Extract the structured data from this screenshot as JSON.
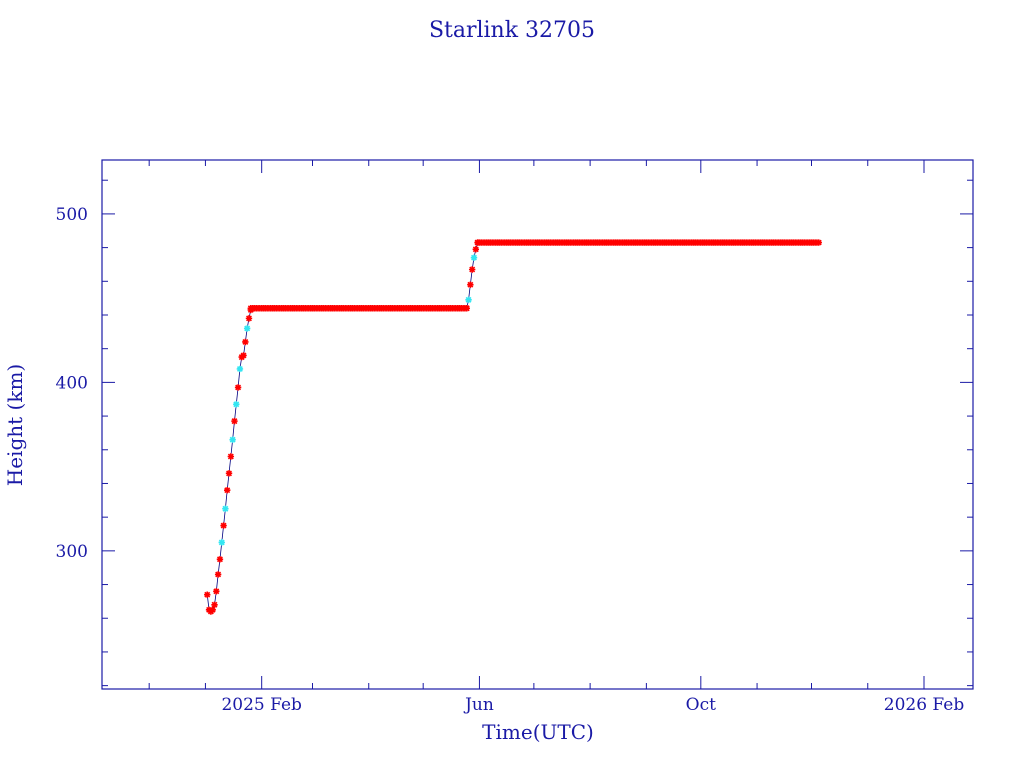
{
  "colors": {
    "axis": "#1a1aa6",
    "text": "#1a1aa6",
    "marker_red": "#ff0000",
    "marker_cyan": "#33e6f2",
    "line": "#000080",
    "background": "#ffffff"
  },
  "chart_data": {
    "type": "scatter",
    "title": "Starlink 32705",
    "xlabel": "Time(UTC)",
    "ylabel": "Height (km)",
    "x_type": "date",
    "xlim": [
      "2024-11-05",
      "2026-02-28"
    ],
    "ylim": [
      218,
      532
    ],
    "x_ticks": [
      {
        "date": "2025-02-01",
        "label": "2025 Feb"
      },
      {
        "date": "2025-06-01",
        "label": "Jun"
      },
      {
        "date": "2025-10-01",
        "label": "Oct"
      },
      {
        "date": "2026-02-01",
        "label": "2026 Feb"
      }
    ],
    "y_ticks": [
      300,
      400,
      500
    ],
    "grid": false,
    "series": [
      {
        "marker": "star",
        "points": [
          [
            "2025-01-02",
            274,
            "red"
          ],
          [
            "2025-01-03",
            265,
            "red"
          ],
          [
            "2025-01-04",
            264,
            "red"
          ],
          [
            "2025-01-05",
            265,
            "red"
          ],
          [
            "2025-01-06",
            268,
            "red"
          ],
          [
            "2025-01-07",
            276,
            "red"
          ],
          [
            "2025-01-08",
            286,
            "red"
          ],
          [
            "2025-01-09",
            295,
            "red"
          ],
          [
            "2025-01-10",
            305,
            "cyan"
          ],
          [
            "2025-01-11",
            315,
            "red"
          ],
          [
            "2025-01-12",
            325,
            "cyan"
          ],
          [
            "2025-01-13",
            336,
            "red"
          ],
          [
            "2025-01-14",
            346,
            "red"
          ],
          [
            "2025-01-15",
            356,
            "red"
          ],
          [
            "2025-01-16",
            366,
            "cyan"
          ],
          [
            "2025-01-17",
            377,
            "red"
          ],
          [
            "2025-01-18",
            387,
            "cyan"
          ],
          [
            "2025-01-19",
            397,
            "red"
          ],
          [
            "2025-01-20",
            408,
            "cyan"
          ],
          [
            "2025-01-21",
            415,
            "red"
          ],
          [
            "2025-01-22",
            416,
            "red"
          ],
          [
            "2025-01-23",
            424,
            "red"
          ],
          [
            "2025-01-24",
            432,
            "cyan"
          ],
          [
            "2025-01-25",
            438,
            "red"
          ],
          [
            "2025-01-26",
            443,
            "red"
          ],
          [
            "2025-05-25",
            444,
            "red"
          ],
          [
            "2025-05-26",
            449,
            "cyan"
          ],
          [
            "2025-05-27",
            458,
            "red"
          ],
          [
            "2025-05-28",
            467,
            "red"
          ],
          [
            "2025-05-29",
            474,
            "cyan"
          ],
          [
            "2025-05-30",
            479,
            "red"
          ],
          [
            "2025-05-31",
            483,
            "red"
          ]
        ],
        "plateaus": [
          {
            "from": "2025-01-26",
            "to": "2025-05-25",
            "value": 444,
            "color": "red"
          },
          {
            "from": "2025-05-31",
            "to": "2025-12-05",
            "value": 483,
            "color": "red"
          }
        ]
      }
    ]
  }
}
